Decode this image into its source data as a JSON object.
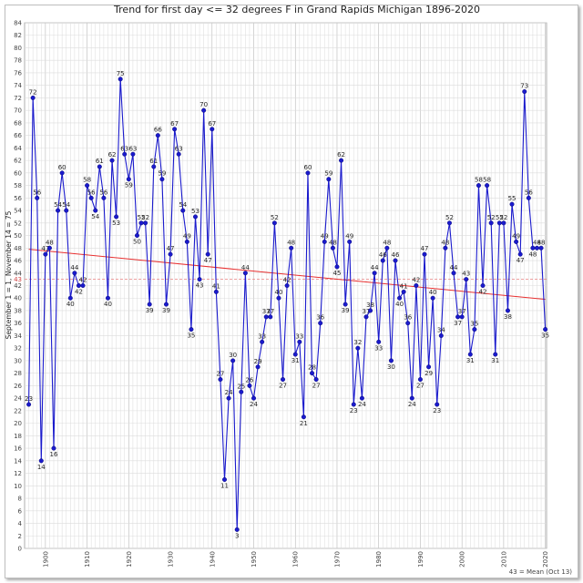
{
  "chart_data": {
    "type": "line",
    "title": "Trend for first day <= 32 degrees F in Grand Rapids Michigan 1896-2020",
    "ylabel": "September 1 = 1, November 14 = 75",
    "xlabel": "",
    "ylim": [
      0,
      84
    ],
    "xlim": [
      1896,
      2020
    ],
    "y_ticks": [
      0,
      2,
      4,
      6,
      8,
      10,
      12,
      14,
      16,
      18,
      20,
      22,
      24,
      26,
      28,
      30,
      32,
      34,
      36,
      38,
      40,
      42,
      44,
      46,
      48,
      50,
      52,
      54,
      56,
      58,
      60,
      62,
      64,
      66,
      68,
      70,
      72,
      74,
      76,
      78,
      80,
      82,
      84
    ],
    "x_ticks": [
      1900,
      1910,
      1920,
      1930,
      1940,
      1950,
      1960,
      1970,
      1980,
      1990,
      2000,
      2010,
      2020
    ],
    "grid": true,
    "mean_value": 43,
    "mean_label": "43",
    "mean_note": "43 = Mean (Oct 13)",
    "trend": {
      "start": [
        1896,
        47.8
      ],
      "end": [
        2020,
        39.8
      ],
      "color": "#e83030"
    },
    "series": [
      {
        "color": "#1a1acc",
        "x": [
          1896,
          1897,
          1898,
          1899,
          1900,
          1901,
          1902,
          1903,
          1904,
          1905,
          1906,
          1907,
          1908,
          1909,
          1910,
          1911,
          1912,
          1913,
          1914,
          1915,
          1916,
          1917,
          1918,
          1919,
          1920,
          1921,
          1922,
          1923,
          1924,
          1925,
          1926,
          1927,
          1928,
          1929,
          1930,
          1931,
          1932,
          1933,
          1934,
          1935,
          1936,
          1937,
          1938,
          1939,
          1940,
          1941,
          1942,
          1943,
          1944,
          1945,
          1946,
          1947,
          1948,
          1949,
          1950,
          1951,
          1952,
          1953,
          1954,
          1955,
          1956,
          1957,
          1958,
          1959,
          1960,
          1961,
          1962,
          1963,
          1964,
          1965,
          1966,
          1967,
          1968,
          1969,
          1970,
          1971,
          1972,
          1973,
          1974,
          1975,
          1976,
          1977,
          1978,
          1979,
          1980,
          1981,
          1982,
          1983,
          1984,
          1985,
          1986,
          1987,
          1988,
          1989,
          1990,
          1991,
          1992,
          1993,
          1994,
          1995,
          1996,
          1997,
          1998,
          1999,
          2000,
          2001,
          2002,
          2003,
          2004,
          2005,
          2006,
          2007,
          2008,
          2009,
          2010,
          2011,
          2012,
          2013,
          2014,
          2015,
          2016,
          2017,
          2018,
          2019,
          2020
        ],
        "values": [
          23,
          72,
          56,
          14,
          47,
          48,
          16,
          54,
          60,
          54,
          40,
          44,
          42,
          42,
          58,
          56,
          54,
          61,
          56,
          40,
          62,
          53,
          75,
          63,
          59,
          63,
          50,
          52,
          52,
          39,
          61,
          66,
          59,
          39,
          47,
          67,
          63,
          54,
          49,
          35,
          53,
          43,
          70,
          47,
          67,
          41,
          27,
          11,
          24,
          30,
          3,
          25,
          44,
          26,
          24,
          29,
          33,
          37,
          37,
          52,
          40,
          27,
          42,
          48,
          31,
          33,
          21,
          60,
          28,
          27,
          36,
          49,
          59,
          48,
          45,
          62,
          39,
          49,
          23,
          32,
          24,
          37,
          38,
          44,
          33,
          46,
          48,
          30,
          46,
          40,
          41,
          36,
          24,
          42,
          27,
          47,
          29,
          40,
          23,
          34,
          48,
          52,
          44,
          37,
          37,
          43,
          31,
          35,
          58,
          42,
          58,
          52,
          31,
          52,
          52,
          38,
          55,
          49,
          47,
          73,
          56,
          48,
          48,
          48,
          35
        ]
      }
    ]
  }
}
